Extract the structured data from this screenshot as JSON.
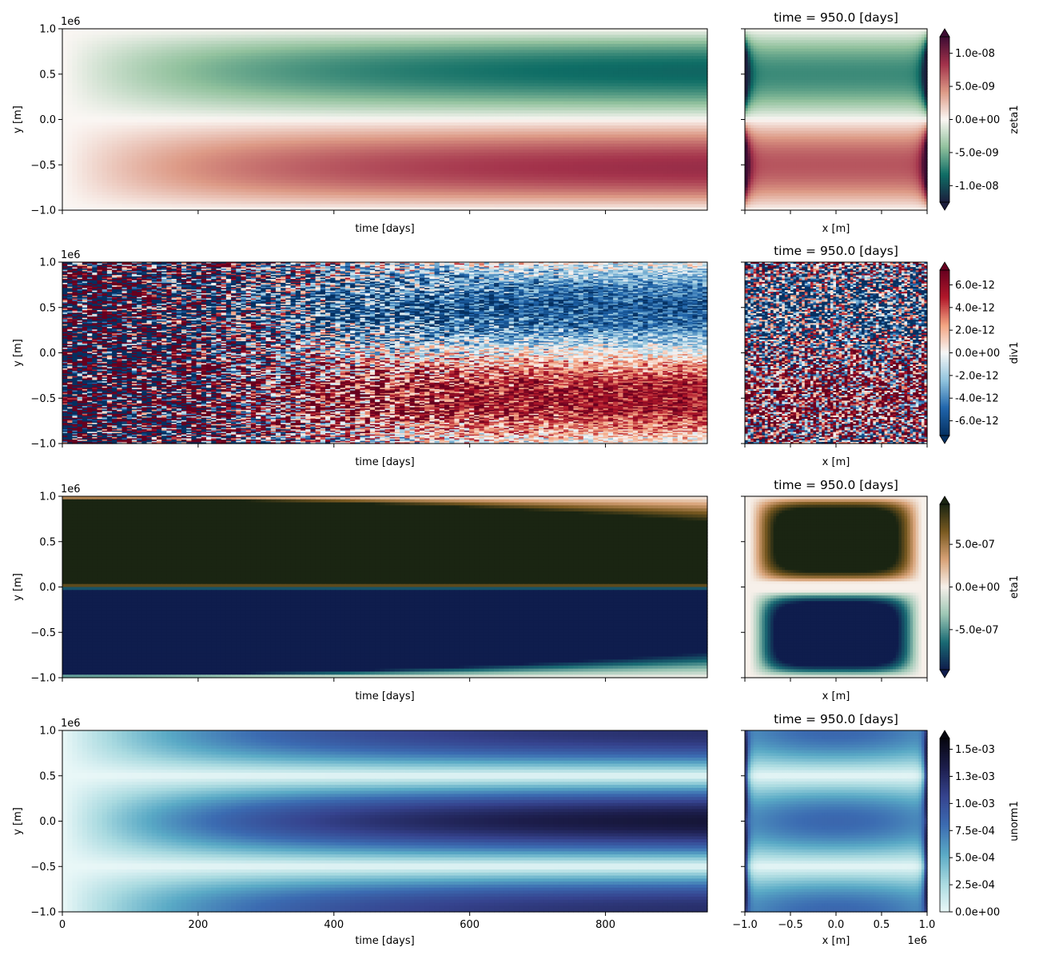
{
  "chart_data": [
    {
      "type": "heatmap",
      "panel": "hovmoller",
      "variable": "zeta1",
      "xlabel": "time [days]",
      "ylabel": "y [m]",
      "y_offset_label": "1e6",
      "xlim": [
        0,
        950
      ],
      "ylim": [
        -1.0,
        1.0
      ],
      "yticks": [
        "−1.0",
        "−0.5",
        "0.0",
        "0.5",
        "1.0"
      ],
      "xticks": [],
      "pattern": "antisymmetric in y: negative (green) for y>0, positive (red) for y<0, extrema near |y|=0.5, growing with time from 0"
    },
    {
      "type": "heatmap",
      "panel": "snapshot",
      "variable": "zeta1",
      "title": "time = 950.0 [days]",
      "xlabel": "x [m]",
      "xlim": [
        -1.0,
        1.0
      ],
      "ylim": [
        -1.0,
        1.0
      ],
      "colorbar": {
        "label": "zeta1",
        "ticks": [
          "1.0e-08",
          "5.0e-09",
          "0.0e+00",
          "-5.0e-09",
          "-1.0e-08"
        ],
        "tick_values": [
          1e-08,
          5e-09,
          0,
          -5e-09,
          -1e-08
        ],
        "range": [
          -1.25e-08,
          1.25e-08
        ],
        "colors": [
          "#1c1e3d",
          "#0f6e66",
          "#92c29e",
          "#fbf7f4",
          "#dd9a86",
          "#a3324b",
          "#3d0c33"
        ],
        "extend": "both"
      }
    },
    {
      "type": "heatmap",
      "panel": "hovmoller",
      "variable": "div1",
      "xlabel": "time [days]",
      "ylabel": "y [m]",
      "y_offset_label": "1e6",
      "xlim": [
        0,
        950
      ],
      "ylim": [
        -1.0,
        1.0
      ],
      "yticks": [
        "−1.0",
        "−0.5",
        "0.0",
        "0.5",
        "1.0"
      ],
      "xticks": [],
      "pattern": "noisy saturated at early times, settling to negative (blue) for y>0 and positive (red) for y<0"
    },
    {
      "type": "heatmap",
      "panel": "snapshot",
      "variable": "div1",
      "title": "time = 950.0 [days]",
      "xlabel": "x [m]",
      "xlim": [
        -1.0,
        1.0
      ],
      "ylim": [
        -1.0,
        1.0
      ],
      "colorbar": {
        "label": "div1",
        "ticks": [
          "6.0e-12",
          "4.0e-12",
          "2.0e-12",
          "0.0e+00",
          "-2.0e-12",
          "-4.0e-12",
          "-6.0e-12"
        ],
        "tick_values": [
          6e-12,
          4e-12,
          2e-12,
          0,
          -2e-12,
          -4e-12,
          -6e-12
        ],
        "range": [
          -7.3e-12,
          7.3e-12
        ],
        "colors": [
          "#053061",
          "#2166ac",
          "#92c5de",
          "#f7f7f7",
          "#f4a582",
          "#b2182b",
          "#67001f"
        ],
        "extend": "both"
      }
    },
    {
      "type": "heatmap",
      "panel": "hovmoller",
      "variable": "eta1",
      "xlabel": "time [days]",
      "ylabel": "y [m]",
      "y_offset_label": "1e6",
      "xlim": [
        0,
        950
      ],
      "ylim": [
        -1.0,
        1.0
      ],
      "yticks": [
        "−1.0",
        "−0.5",
        "0.0",
        "0.5",
        "1.0"
      ],
      "xticks": [],
      "pattern": "saturated positive (dark green) for y>0 and saturated negative (navy) for y<0, margins widening with time"
    },
    {
      "type": "heatmap",
      "panel": "snapshot",
      "variable": "eta1",
      "title": "time = 950.0 [days]",
      "xlabel": "x [m]",
      "xlim": [
        -1.0,
        1.0
      ],
      "ylim": [
        -1.0,
        1.0
      ],
      "colorbar": {
        "label": "eta1",
        "ticks": [
          "5.0e-07",
          "0.0e+00",
          "-5.0e-07"
        ],
        "tick_values": [
          5e-07,
          0,
          -5e-07
        ],
        "range": [
          -9.7e-07,
          9.7e-07
        ],
        "colors": [
          "#0f1d4d",
          "#1a6b74",
          "#9dc7b5",
          "#f7f0ea",
          "#d8a277",
          "#7a5a21",
          "#1a2512"
        ],
        "extend": "both"
      }
    },
    {
      "type": "heatmap",
      "panel": "hovmoller",
      "variable": "unorm1",
      "xlabel": "time [days]",
      "ylabel": "y [m]",
      "y_offset_label": "1e6",
      "xlim": [
        0,
        950
      ],
      "ylim": [
        -1.0,
        1.0
      ],
      "xticks": [
        "0",
        "200",
        "400",
        "600",
        "800"
      ],
      "yticks": [
        "−1.0",
        "−0.5",
        "0.0",
        "0.5",
        "1.0"
      ],
      "pattern": "speed grows with time, minima (white) near |y|=0.5, maxima at y=0 and walls"
    },
    {
      "type": "heatmap",
      "panel": "snapshot",
      "variable": "unorm1",
      "title": "time = 950.0 [days]",
      "xlabel": "x [m]",
      "x_offset_label": "1e6",
      "xlim": [
        -1.0,
        1.0
      ],
      "ylim": [
        -1.0,
        1.0
      ],
      "xticks": [
        "−1.0",
        "−0.5",
        "0.0",
        "0.5",
        "1.0"
      ],
      "colorbar": {
        "label": "unorm1",
        "ticks": [
          "1.5e-03",
          "1.3e-03",
          "1.0e-03",
          "7.5e-04",
          "5.0e-04",
          "2.5e-04",
          "0.0e+00"
        ],
        "tick_values": [
          0.0015,
          0.00125,
          0.001,
          0.00075,
          0.0005,
          0.00025,
          0
        ],
        "range": [
          0,
          0.0016
        ],
        "colors": [
          "#eaf8f8",
          "#a9dae0",
          "#5aaac6",
          "#3c6cb2",
          "#36448f",
          "#1d1e4c",
          "#07070f"
        ],
        "extend": "max"
      }
    }
  ]
}
